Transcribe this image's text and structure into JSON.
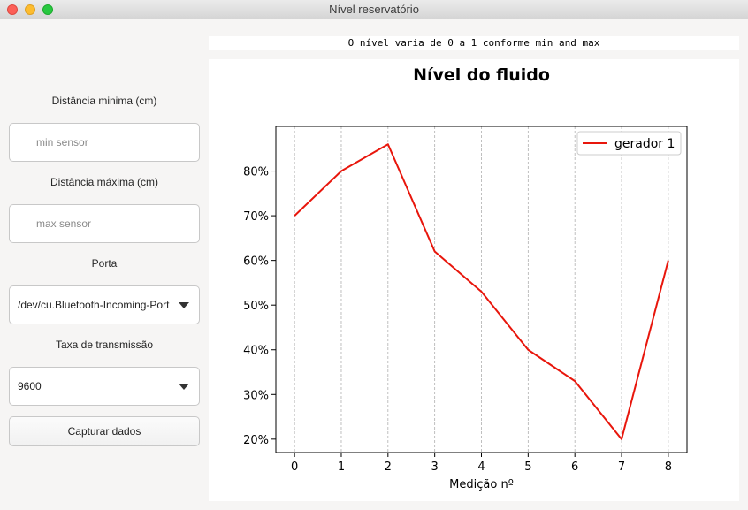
{
  "window": {
    "title": "Nível reservatório"
  },
  "form": {
    "min_label": "Distância minima (cm)",
    "min_placeholder": "min sensor",
    "min_value": "",
    "max_label": "Distância máxima (cm)",
    "max_placeholder": "max sensor",
    "max_value": "",
    "port_label": "Porta",
    "port_value": "/dev/cu.Bluetooth-Incoming-Port",
    "baud_label": "Taxa de transmissão",
    "baud_value": "9600",
    "capture_label": "Capturar dados"
  },
  "info_text": "O nível varia de 0 a 1 conforme min and max",
  "colors": {
    "series": "#e8160c",
    "grid": "#b0b0b0"
  },
  "chart_data": {
    "type": "line",
    "title": "Nível do fluido",
    "xlabel": "Medição nº",
    "ylabel": "",
    "x": [
      0,
      1,
      2,
      3,
      4,
      5,
      6,
      7,
      8
    ],
    "series": [
      {
        "name": "gerador 1",
        "values": [
          0.7,
          0.8,
          0.86,
          0.62,
          0.53,
          0.4,
          0.33,
          0.2,
          0.6
        ]
      }
    ],
    "xlim": [
      -0.4,
      8.4
    ],
    "ylim": [
      0.17,
      0.9
    ],
    "yticks": [
      0.2,
      0.3,
      0.4,
      0.5,
      0.6,
      0.7,
      0.8
    ],
    "ytick_labels": [
      "20%",
      "30%",
      "40%",
      "50%",
      "60%",
      "70%",
      "80%"
    ],
    "grid": "vertical dashed",
    "legend": "top-right"
  }
}
